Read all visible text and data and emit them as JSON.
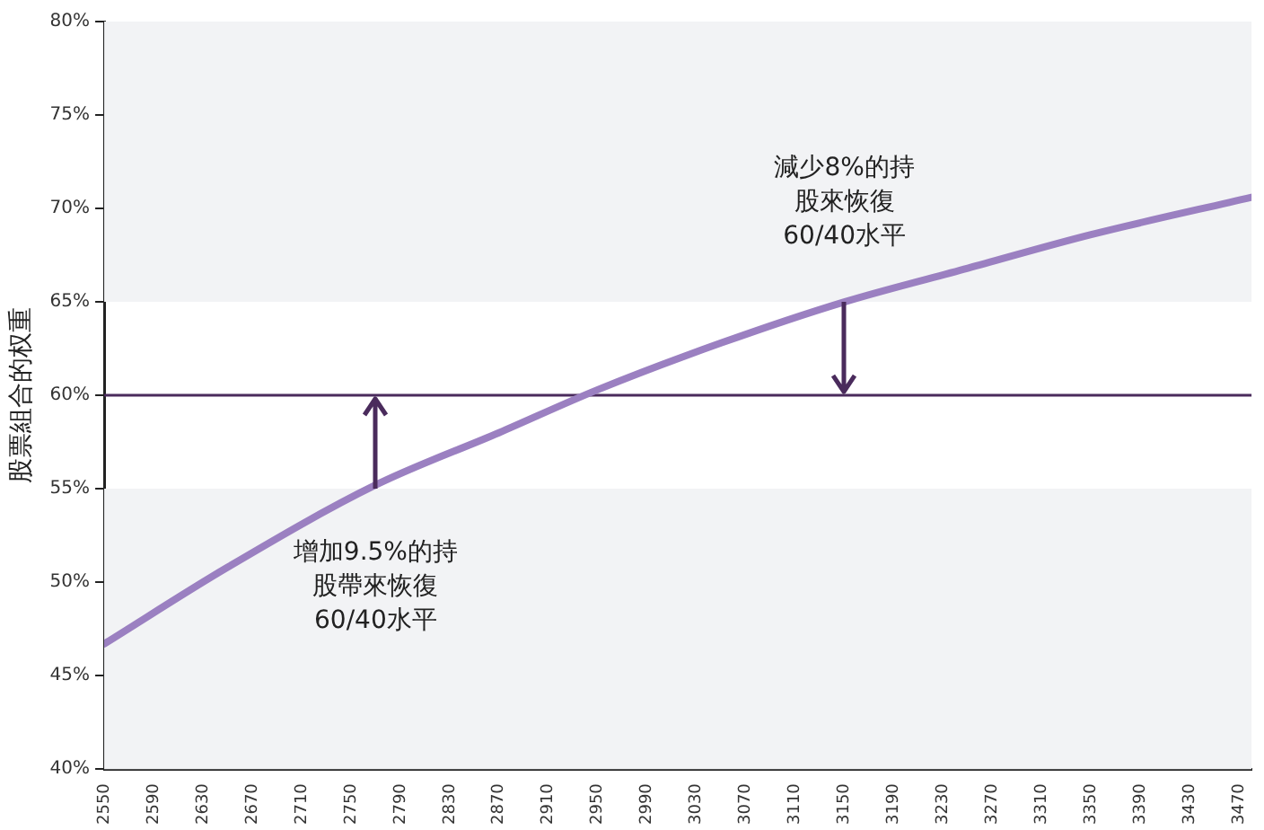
{
  "chart_data": {
    "type": "line",
    "ylabel": "股票組合的权重",
    "series": [
      {
        "color": "#9b80c1",
        "x": [
          2550,
          2650,
          2770,
          2870,
          2950,
          3050,
          3150,
          3250,
          3350,
          3480
        ],
        "values": [
          46.7,
          50.8,
          55.2,
          58.0,
          60.3,
          62.8,
          65.0,
          66.8,
          68.6,
          70.6
        ]
      }
    ],
    "xlim": [
      2550,
      3480
    ],
    "xticks": [
      2550,
      2590,
      2630,
      2670,
      2710,
      2750,
      2790,
      2830,
      2870,
      2910,
      2950,
      2990,
      3030,
      3070,
      3110,
      3150,
      3190,
      3230,
      3270,
      3310,
      3350,
      3390,
      3430,
      3470
    ],
    "ylim": [
      40,
      80
    ],
    "yticks": [
      {
        "value": 40,
        "label": "40%"
      },
      {
        "value": 45,
        "label": "45%"
      },
      {
        "value": 50,
        "label": "50%"
      },
      {
        "value": 55,
        "label": "55%"
      },
      {
        "value": 60,
        "label": "60%"
      },
      {
        "value": 65,
        "label": "65%"
      },
      {
        "value": 70,
        "label": "70%"
      },
      {
        "value": 75,
        "label": "75%"
      },
      {
        "value": 80,
        "label": "80%"
      }
    ],
    "bands": [
      {
        "axis": "y",
        "from": 40,
        "to": 55,
        "color": "#f2f3f5"
      },
      {
        "axis": "y",
        "from": 65,
        "to": 80,
        "color": "#f2f3f5"
      }
    ],
    "ref_lines": [
      {
        "axis": "y",
        "value": 60,
        "color": "#4a2b5c"
      }
    ],
    "annotations": [
      {
        "text": "增加9.5%的持股帶來恢復60/40水平",
        "x": 2770,
        "y": 55
      },
      {
        "text": "減少8%的持股來恢復60/40水平",
        "x": 3150,
        "y": 65
      }
    ],
    "grid": false,
    "legend": false,
    "marker": "none",
    "line_style": "solid"
  }
}
